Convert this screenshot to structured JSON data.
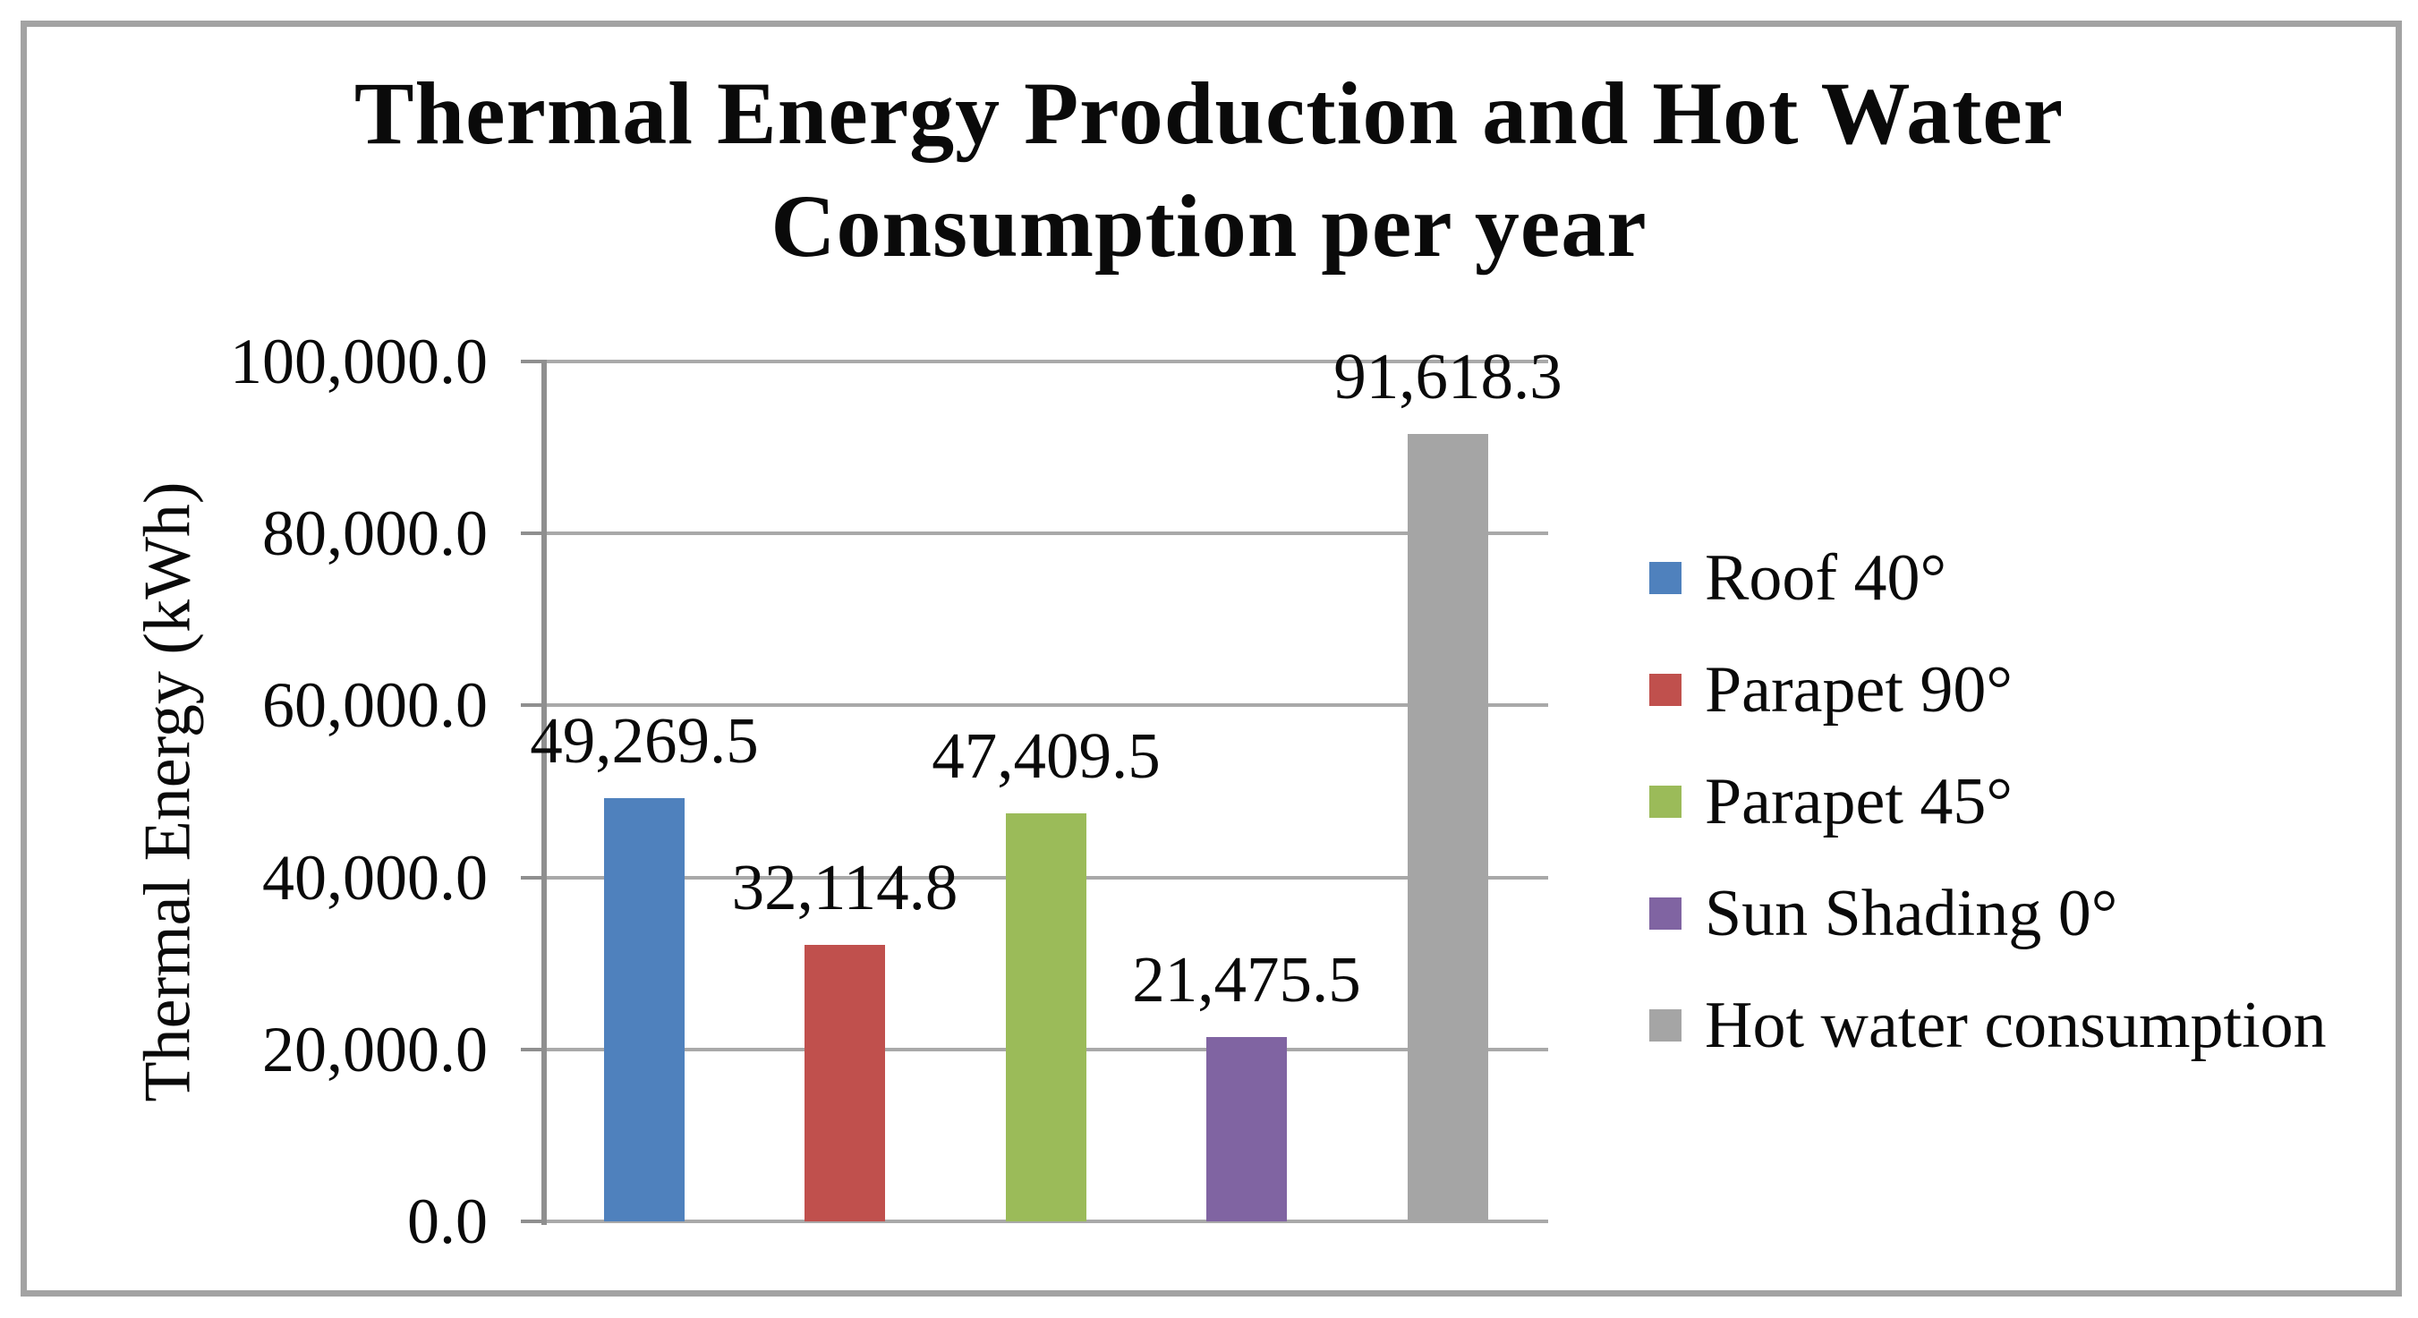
{
  "chart_data": {
    "type": "bar",
    "title": "Thermal Energy Production and Hot Water Consumption per year",
    "title_lines": [
      "Thermal Energy Production and Hot Water",
      "Consumption per year"
    ],
    "ylabel": "Thermal Energy (kWh)",
    "xlabel": "",
    "ylim": [
      0,
      100000
    ],
    "ytick_interval": 20000,
    "ytick_labels": [
      "100,000.0",
      "80,000.0",
      "60,000.0",
      "40,000.0",
      "20,000.0",
      "0.0"
    ],
    "grid": true,
    "legend_position": "right",
    "categories": [
      "Roof 40°",
      "Parapet 90°",
      "Parapet 45°",
      "Sun Shading 0°",
      "Hot water consumption"
    ],
    "values": [
      49269.5,
      32114.8,
      47409.5,
      21475.5,
      91618.3
    ],
    "series": [
      {
        "name": "Roof 40°",
        "value": 49269.5,
        "label": "49,269.5",
        "color": "#4F81BD"
      },
      {
        "name": "Parapet 90°",
        "value": 32114.8,
        "label": "32,114.8",
        "color": "#C0504D"
      },
      {
        "name": "Parapet 45°",
        "value": 47409.5,
        "label": "47,409.5",
        "color": "#9BBB59"
      },
      {
        "name": "Sun Shading 0°",
        "value": 21475.5,
        "label": "21,475.5",
        "color": "#8064A2"
      },
      {
        "name": "Hot water consumption",
        "value": 91618.3,
        "label": "91,618.3",
        "color": "#A5A5A5"
      }
    ]
  }
}
